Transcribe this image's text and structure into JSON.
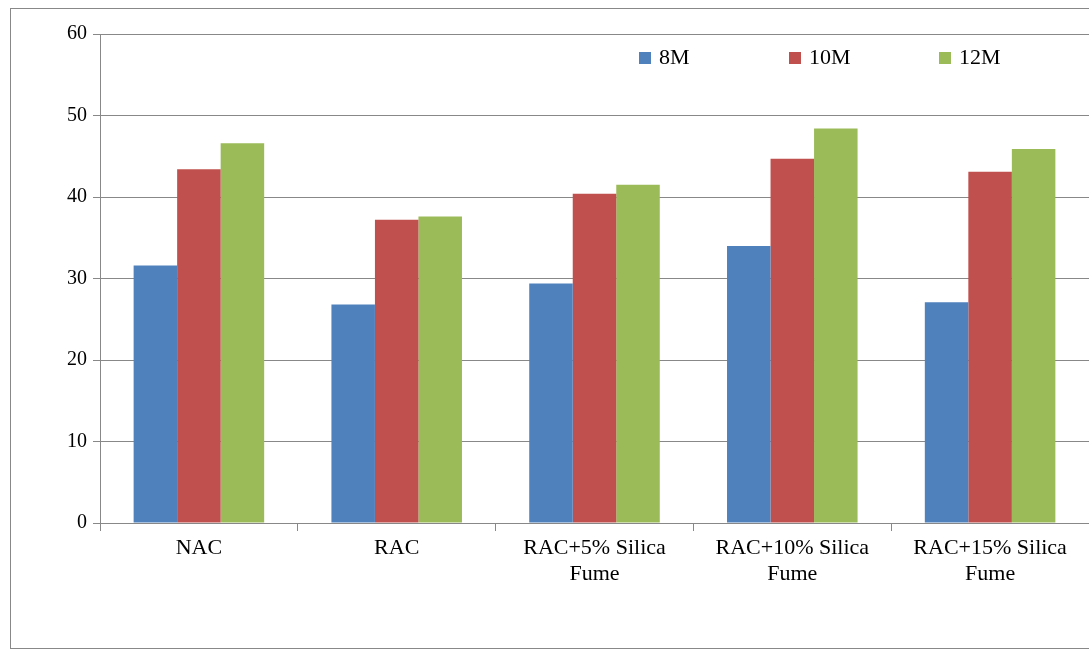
{
  "chart_data": {
    "type": "bar",
    "categories": [
      "NAC",
      "RAC",
      "RAC+5% Silica Fume",
      "RAC+10% Silica Fume",
      "RAC+15% Silica Fume"
    ],
    "series": [
      {
        "name": "8M",
        "color": "#4f81bd",
        "values": [
          31.6,
          26.8,
          29.4,
          34.0,
          27.1
        ]
      },
      {
        "name": "10M",
        "color": "#c0504d",
        "values": [
          43.4,
          37.2,
          40.4,
          44.7,
          43.1
        ]
      },
      {
        "name": "12M",
        "color": "#9bbb59",
        "values": [
          46.6,
          37.6,
          41.5,
          48.4,
          45.9
        ]
      }
    ],
    "ylim": [
      0,
      60
    ],
    "yticks": [
      0,
      10,
      20,
      30,
      40,
      50,
      60
    ],
    "grid": "y",
    "legend": "top right"
  }
}
